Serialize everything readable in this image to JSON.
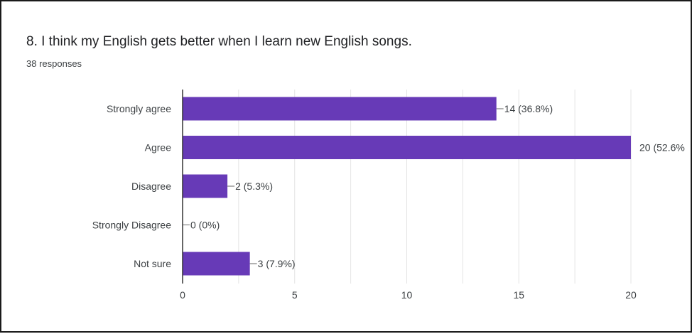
{
  "question": {
    "title": "8. I think my English gets better when I learn new English songs.",
    "responses": "38 responses"
  },
  "colors": {
    "bar": "#673ab7",
    "grid": "#e4e4e4",
    "axis": "#333333",
    "text": "#3c4043"
  },
  "chart_data": {
    "type": "bar",
    "orientation": "horizontal",
    "title": "8. I think my English gets better when I learn new English songs.",
    "subtitle": "38 responses",
    "categories": [
      "Strongly agree",
      "Agree",
      "Disagree",
      "Strongly Disagree",
      "Not sure"
    ],
    "values": [
      14,
      20,
      2,
      0,
      3
    ],
    "data_labels": [
      "14 (36.8%)",
      "20 (52.6%",
      "2 (5.3%)",
      "0 (0%)",
      "3 (7.9%)"
    ],
    "xlim": [
      0,
      20
    ],
    "xticks": [
      0,
      5,
      10,
      15,
      20
    ],
    "grid": true,
    "xlabel": "",
    "ylabel": ""
  }
}
